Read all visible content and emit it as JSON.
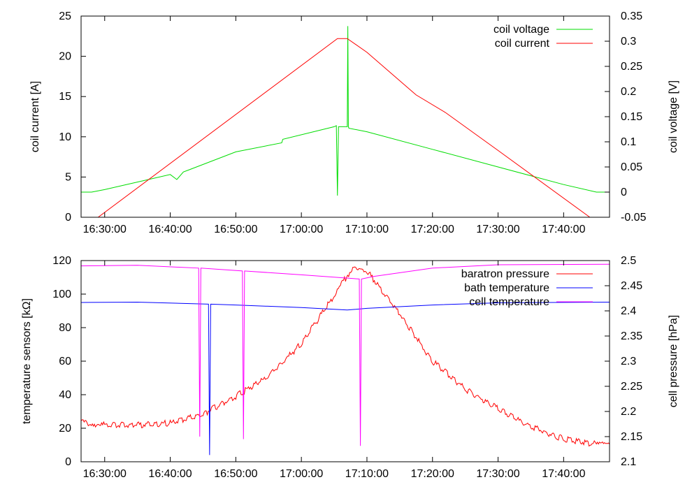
{
  "chart_data": [
    {
      "type": "line",
      "x_ticks": [
        "16:30:00",
        "16:40:00",
        "16:50:00",
        "17:00:00",
        "17:10:00",
        "17:20:00",
        "17:30:00",
        "17:40:00"
      ],
      "x_range_minutes_from_1630": [
        -3.6,
        77
      ],
      "ylabel": "coil current [A]",
      "y2label": "coil voltage [V]",
      "ylim": [
        0,
        25
      ],
      "y_ticks": [
        "0",
        "5",
        "10",
        "15",
        "20",
        "25"
      ],
      "y2lim": [
        -0.05,
        0.35
      ],
      "y2_ticks": [
        "-0.05",
        "0",
        "0.05",
        "0.1",
        "0.15",
        "0.2",
        "0.25",
        "0.3",
        "0.35"
      ],
      "legend_position": "top-right",
      "grid": false,
      "series": [
        {
          "name": "coil voltage",
          "axis": "y2",
          "color": "#00dd00",
          "x_time": [
            "16:26:24",
            "16:28:00",
            "16:30:00",
            "16:40:00",
            "16:41:00",
            "16:42:00",
            "16:43:00",
            "16:50:00",
            "16:57:00",
            "16:57:10",
            "17:05:00",
            "17:05:20",
            "17:05:30",
            "17:05:40",
            "17:06:30",
            "17:07:00",
            "17:07:05",
            "17:07:10",
            "17:07:15",
            "17:10:00",
            "17:20:00",
            "17:30:00",
            "17:40:00",
            "17:45:00",
            "17:47:00"
          ],
          "y": [
            0.0,
            0.0,
            0.005,
            0.035,
            0.025,
            0.04,
            0.045,
            0.08,
            0.098,
            0.105,
            0.13,
            0.132,
            -0.007,
            0.13,
            0.13,
            0.13,
            0.33,
            0.13,
            0.127,
            0.12,
            0.085,
            0.05,
            0.015,
            0.0,
            0.0
          ]
        },
        {
          "name": "coil current",
          "axis": "y",
          "color": "#ff0000",
          "x_time": [
            "16:26:24",
            "16:29:00",
            "17:05:30",
            "17:07:00",
            "17:10:00",
            "17:17:30",
            "17:22:00",
            "17:30:00",
            "17:44:00",
            "17:47:00"
          ],
          "y": [
            -1.5,
            0.0,
            22.2,
            22.2,
            20.5,
            15.2,
            13.0,
            8.3,
            0.0,
            -1.5
          ]
        }
      ]
    },
    {
      "type": "line",
      "x_ticks": [
        "16:30:00",
        "16:40:00",
        "16:50:00",
        "17:00:00",
        "17:10:00",
        "17:20:00",
        "17:30:00",
        "17:40:00"
      ],
      "x_range_minutes_from_1630": [
        -3.6,
        77
      ],
      "ylabel": "temperature sensors [kΩ]",
      "y2label": "cell pressure [hPa]",
      "ylim": [
        0,
        120
      ],
      "y_ticks": [
        "0",
        "20",
        "40",
        "60",
        "80",
        "100",
        "120"
      ],
      "y2lim": [
        2.1,
        2.5
      ],
      "y2_ticks": [
        "2.1",
        "2.15",
        "2.2",
        "2.25",
        "2.3",
        "2.35",
        "2.4",
        "2.45",
        "2.5"
      ],
      "legend_position": "top-right",
      "grid": false,
      "series": [
        {
          "name": "baratron pressure",
          "axis": "y2",
          "color": "#ff0000",
          "x_time": [
            "16:26:24",
            "16:30:00",
            "16:35:00",
            "16:40:00",
            "16:45:00",
            "16:50:00",
            "16:55:00",
            "17:00:00",
            "17:05:00",
            "17:08:00",
            "17:10:00",
            "17:15:00",
            "17:20:00",
            "17:25:00",
            "17:30:00",
            "17:35:00",
            "17:40:00",
            "17:45:00",
            "17:47:00"
          ],
          "y": [
            2.178,
            2.173,
            2.173,
            2.177,
            2.195,
            2.23,
            2.27,
            2.335,
            2.43,
            2.49,
            2.48,
            2.395,
            2.3,
            2.245,
            2.205,
            2.17,
            2.145,
            2.135,
            2.135
          ]
        },
        {
          "name": "bath temperature",
          "axis": "y",
          "color": "#0000ff",
          "x_time": [
            "16:26:24",
            "16:35:00",
            "16:45:50",
            "16:46:00",
            "16:46:10",
            "16:50:00",
            "17:00:00",
            "17:07:00",
            "17:10:00",
            "17:20:00",
            "17:30:00",
            "17:47:00"
          ],
          "y": [
            95.0,
            95.2,
            94.0,
            4.0,
            94.0,
            93.5,
            92.0,
            90.5,
            91.5,
            93.5,
            94.8,
            95.2
          ]
        },
        {
          "name": "cell temperature",
          "axis": "y",
          "color": "#ff00ff",
          "x_time": [
            "16:26:24",
            "16:35:00",
            "16:44:20",
            "16:44:30",
            "16:44:40",
            "16:51:00",
            "16:51:10",
            "16:51:20",
            "17:00:00",
            "17:08:50",
            "17:09:00",
            "17:09:10",
            "17:11:00",
            "17:20:00",
            "17:30:00",
            "17:47:00"
          ],
          "y": [
            116.8,
            117.2,
            115.5,
            15.0,
            115.5,
            113.8,
            13.5,
            113.8,
            111.5,
            109.0,
            9.5,
            109.0,
            110.5,
            115.5,
            117.5,
            117.8
          ]
        }
      ]
    }
  ]
}
